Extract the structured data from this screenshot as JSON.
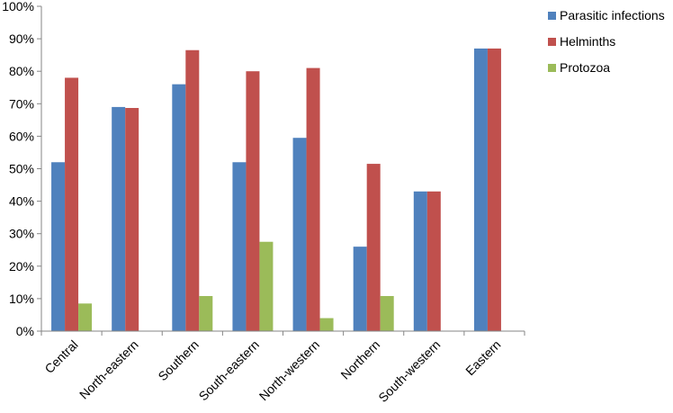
{
  "chart_data": {
    "type": "bar",
    "title": "",
    "xlabel": "",
    "ylabel": "",
    "ylim": [
      0,
      100
    ],
    "yticks": [
      "0%",
      "10%",
      "20%",
      "30%",
      "40%",
      "50%",
      "60%",
      "70%",
      "80%",
      "90%",
      "100%"
    ],
    "categories": [
      "Central",
      "North-eastern",
      "Southern",
      "South-eastern",
      "North-western",
      "Northern",
      "South-western",
      "Eastern"
    ],
    "series": [
      {
        "name": "Parasitic infections",
        "color": "#4F81BD",
        "values": [
          52,
          69,
          76,
          52,
          59.5,
          26,
          43,
          87
        ]
      },
      {
        "name": "Helminths",
        "color": "#C0504D",
        "values": [
          78,
          68.7,
          86.5,
          80,
          81,
          51.5,
          43,
          87
        ]
      },
      {
        "name": "Protozoa",
        "color": "#9BBB59",
        "values": [
          8.5,
          0,
          10.8,
          27.5,
          4,
          10.8,
          0,
          0
        ]
      }
    ],
    "grid": false,
    "legend_position": "right"
  }
}
